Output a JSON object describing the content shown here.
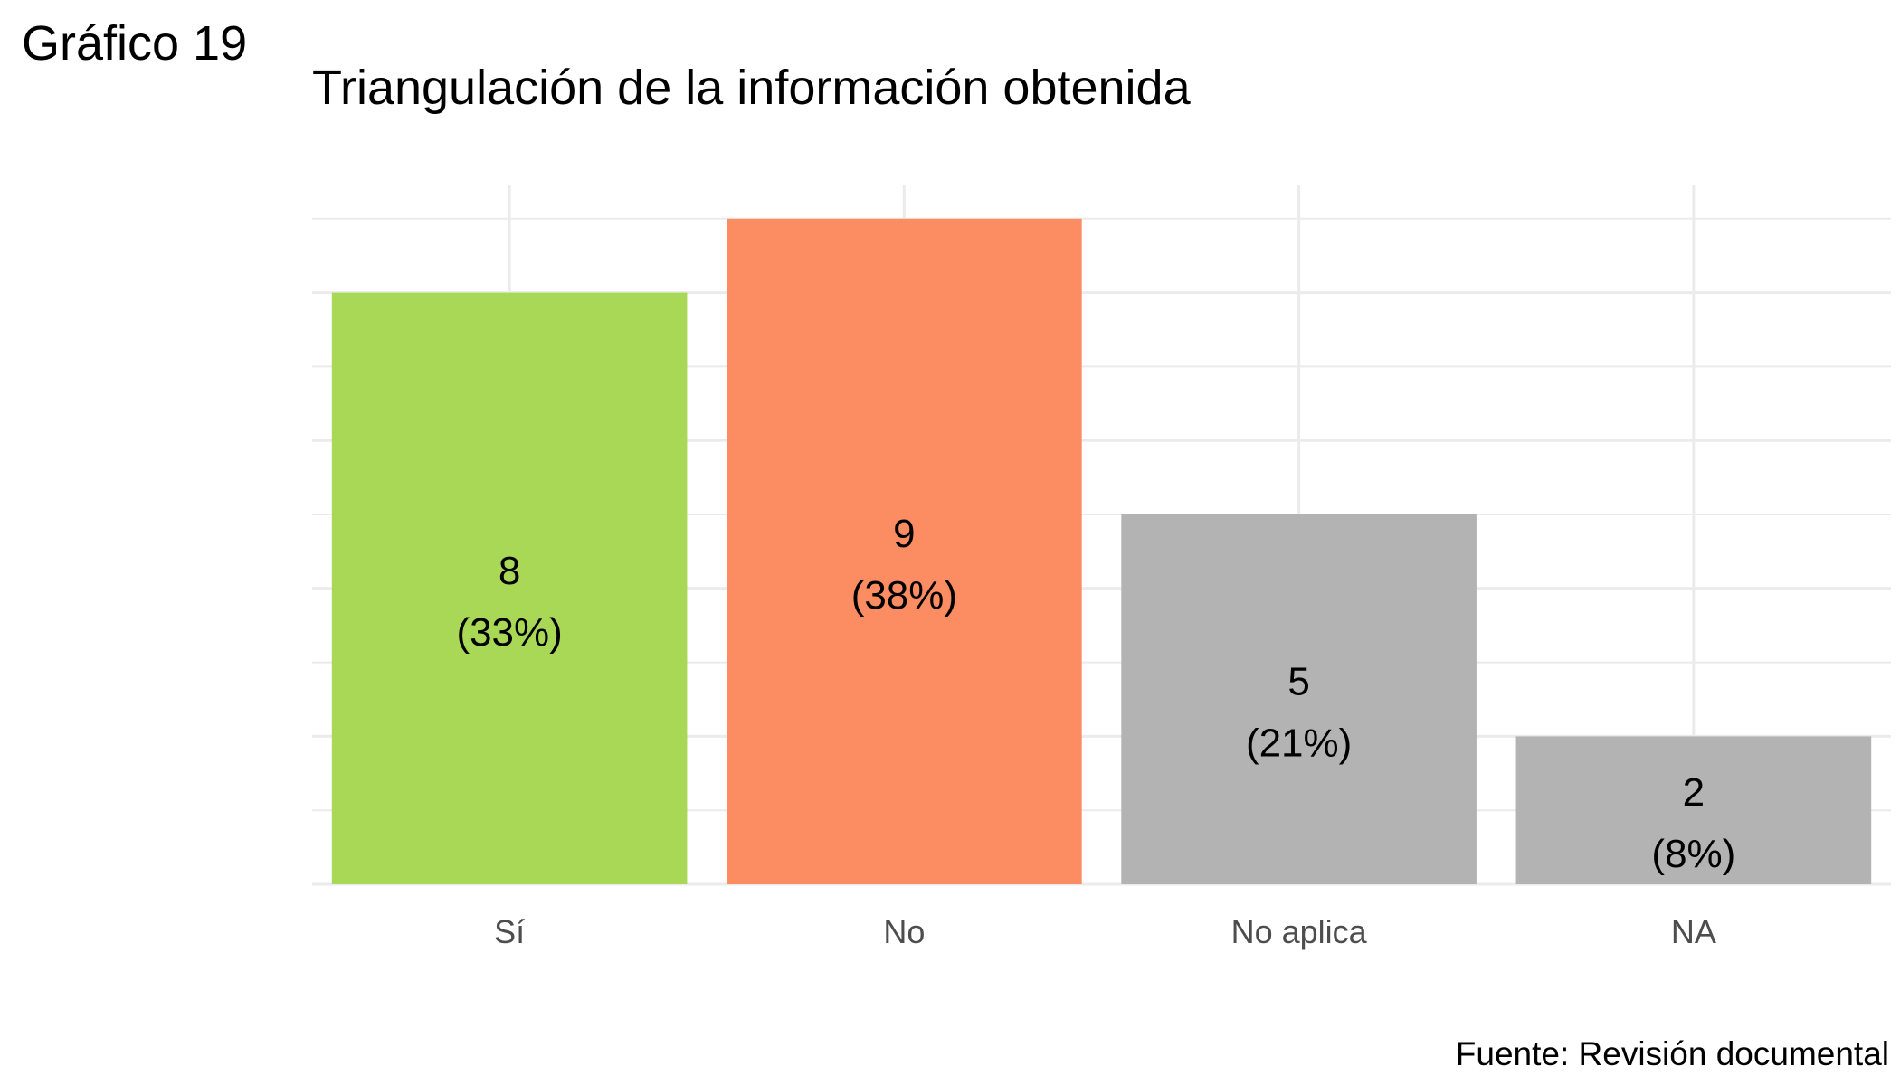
{
  "figure_label": "Gráfico 19",
  "caption": "Fuente: Revisión documental",
  "chart_data": {
    "type": "bar",
    "title": "Triangulación de la información obtenida",
    "xlabel": "",
    "ylabel": "",
    "categories": [
      "Sí",
      "No",
      "No aplica",
      "NA"
    ],
    "values": [
      8,
      9,
      5,
      2
    ],
    "percent_labels": [
      "(33%)",
      "(38%)",
      "(21%)",
      "(8%)"
    ],
    "colors": [
      "#a8d856",
      "#fc8d62",
      "#b3b3b3",
      "#b3b3b3"
    ],
    "ylim": [
      0,
      9.45
    ],
    "y_ticks_shown": false,
    "grid": true,
    "legend": "none"
  }
}
